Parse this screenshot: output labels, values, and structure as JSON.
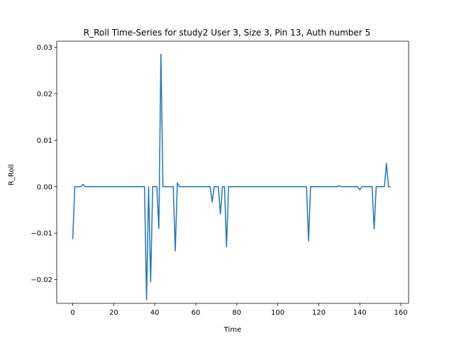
{
  "chart_data": {
    "type": "line",
    "title": "R_Roll Time-Series for study2 User 3, Size 3, Pin 13, Auth number 5",
    "xlabel": "Time",
    "ylabel": "R_Roll",
    "xlim": [
      -7.8,
      163.8
    ],
    "ylim": [
      -0.0251,
      0.0313
    ],
    "xticks": [
      0,
      20,
      40,
      60,
      80,
      100,
      120,
      140,
      160
    ],
    "xtick_labels": [
      "0",
      "20",
      "40",
      "60",
      "80",
      "100",
      "120",
      "140",
      "160"
    ],
    "yticks": [
      -0.02,
      -0.01,
      0.0,
      0.01,
      0.02,
      0.03
    ],
    "ytick_labels": [
      "−0.02",
      "−0.01",
      "0.00",
      "0.01",
      "0.02",
      "0.03"
    ],
    "grid": false,
    "series": [
      {
        "color": "#1f77b4",
        "points": [
          [
            0,
            -0.0113
          ],
          [
            1,
            0
          ],
          [
            2,
            0
          ],
          [
            3,
            0
          ],
          [
            4,
            0
          ],
          [
            5,
            0.0005
          ],
          [
            6,
            0
          ],
          [
            7,
            0
          ],
          [
            8,
            0
          ],
          [
            9,
            0
          ],
          [
            10,
            0
          ],
          [
            11,
            0
          ],
          [
            12,
            0
          ],
          [
            13,
            0
          ],
          [
            14,
            0
          ],
          [
            15,
            0
          ],
          [
            16,
            0
          ],
          [
            17,
            0
          ],
          [
            18,
            0
          ],
          [
            19,
            0
          ],
          [
            20,
            0
          ],
          [
            21,
            0
          ],
          [
            22,
            0
          ],
          [
            23,
            0
          ],
          [
            24,
            0
          ],
          [
            25,
            0
          ],
          [
            26,
            0
          ],
          [
            27,
            0
          ],
          [
            28,
            0
          ],
          [
            29,
            0
          ],
          [
            30,
            0
          ],
          [
            31,
            0
          ],
          [
            32,
            0
          ],
          [
            33,
            0
          ],
          [
            34,
            0
          ],
          [
            35,
            0
          ],
          [
            36,
            -0.0243
          ],
          [
            37,
            0
          ],
          [
            38,
            -0.0205
          ],
          [
            39,
            0
          ],
          [
            40,
            0
          ],
          [
            41,
            0
          ],
          [
            42,
            -0.009
          ],
          [
            43,
            0.0285
          ],
          [
            44,
            0
          ],
          [
            45,
            0
          ],
          [
            46,
            0
          ],
          [
            47,
            0
          ],
          [
            48,
            0
          ],
          [
            49,
            0
          ],
          [
            50,
            -0.0138
          ],
          [
            51,
            0.0008
          ],
          [
            52,
            0
          ],
          [
            53,
            0
          ],
          [
            54,
            0
          ],
          [
            55,
            0
          ],
          [
            56,
            0
          ],
          [
            57,
            0
          ],
          [
            58,
            0
          ],
          [
            59,
            0
          ],
          [
            60,
            0
          ],
          [
            61,
            0
          ],
          [
            62,
            0
          ],
          [
            63,
            0
          ],
          [
            64,
            0
          ],
          [
            65,
            0
          ],
          [
            66,
            0
          ],
          [
            67,
            0
          ],
          [
            68,
            -0.0033
          ],
          [
            69,
            0
          ],
          [
            70,
            0
          ],
          [
            71,
            0
          ],
          [
            72,
            -0.0059
          ],
          [
            73,
            0
          ],
          [
            74,
            0
          ],
          [
            75,
            -0.0129
          ],
          [
            76,
            0
          ],
          [
            77,
            0
          ],
          [
            78,
            0
          ],
          [
            79,
            0
          ],
          [
            80,
            0
          ],
          [
            81,
            0
          ],
          [
            82,
            0
          ],
          [
            83,
            0
          ],
          [
            84,
            0
          ],
          [
            85,
            0
          ],
          [
            86,
            0
          ],
          [
            87,
            0
          ],
          [
            88,
            0
          ],
          [
            89,
            0
          ],
          [
            90,
            0
          ],
          [
            91,
            0
          ],
          [
            92,
            0
          ],
          [
            93,
            0
          ],
          [
            94,
            0
          ],
          [
            95,
            0
          ],
          [
            96,
            0
          ],
          [
            97,
            0
          ],
          [
            98,
            0
          ],
          [
            99,
            0
          ],
          [
            100,
            0
          ],
          [
            101,
            0
          ],
          [
            102,
            0
          ],
          [
            103,
            0
          ],
          [
            104,
            0
          ],
          [
            105,
            0
          ],
          [
            106,
            0
          ],
          [
            107,
            0
          ],
          [
            108,
            0
          ],
          [
            109,
            0
          ],
          [
            110,
            0
          ],
          [
            111,
            0
          ],
          [
            112,
            0
          ],
          [
            113,
            0
          ],
          [
            114,
            0
          ],
          [
            115,
            -0.0117
          ],
          [
            116,
            0
          ],
          [
            117,
            0
          ],
          [
            118,
            0
          ],
          [
            119,
            0
          ],
          [
            120,
            0
          ],
          [
            121,
            0
          ],
          [
            122,
            0
          ],
          [
            123,
            0
          ],
          [
            124,
            0
          ],
          [
            125,
            0
          ],
          [
            126,
            0
          ],
          [
            127,
            0
          ],
          [
            128,
            0
          ],
          [
            129,
            0
          ],
          [
            130,
            0.0002
          ],
          [
            131,
            0
          ],
          [
            132,
            0
          ],
          [
            133,
            0
          ],
          [
            134,
            0
          ],
          [
            135,
            0
          ],
          [
            136,
            0
          ],
          [
            137,
            0
          ],
          [
            138,
            0
          ],
          [
            139,
            0
          ],
          [
            140,
            -0.0007
          ],
          [
            141,
            0
          ],
          [
            142,
            0
          ],
          [
            143,
            0
          ],
          [
            144,
            0
          ],
          [
            145,
            0
          ],
          [
            146,
            0
          ],
          [
            147,
            -0.0091
          ],
          [
            148,
            0
          ],
          [
            149,
            0
          ],
          [
            150,
            0
          ],
          [
            151,
            0
          ],
          [
            152,
            0
          ],
          [
            153,
            0.005
          ],
          [
            154,
            0
          ],
          [
            155,
            0
          ]
        ]
      }
    ]
  }
}
